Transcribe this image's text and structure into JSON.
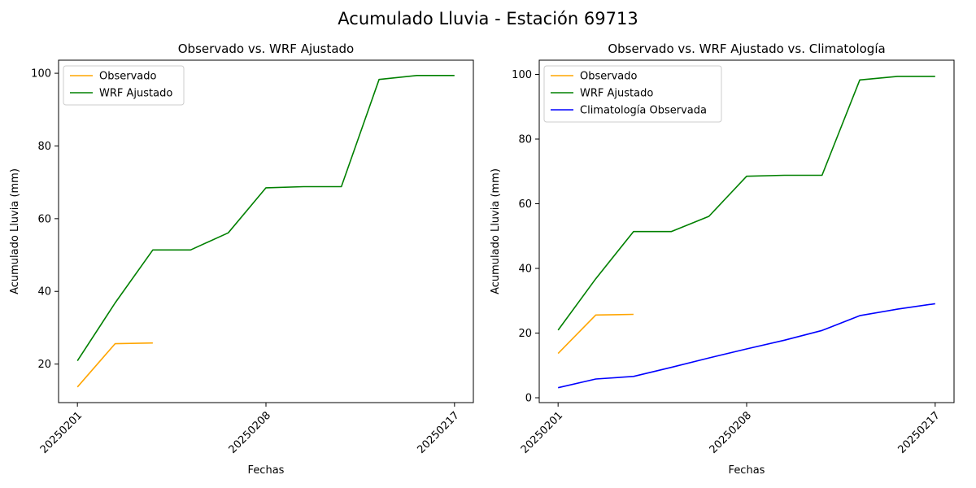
{
  "figure": {
    "suptitle": "Acumulado Lluvia - Estación 69713"
  },
  "chart_data": [
    {
      "type": "line",
      "title": "Observado vs. WRF Ajustado",
      "xlabel": "Fechas",
      "ylabel": "Acumulado Lluvia (mm)",
      "x_ticks": [
        "20250201",
        "20250208",
        "20250217"
      ],
      "x_tick_positions": [
        0,
        5,
        10
      ],
      "xlim": [
        -0.5,
        10.5
      ],
      "ylim": [
        9.4,
        103.6
      ],
      "y_ticks": [
        20,
        40,
        60,
        80,
        100
      ],
      "legend": "top-left",
      "grid": false,
      "series": [
        {
          "name": "Observado",
          "color": "#ffa500",
          "x": [
            0,
            1,
            2
          ],
          "y": [
            13.7,
            25.6,
            25.8
          ]
        },
        {
          "name": "WRF Ajustado",
          "color": "#008000",
          "x": [
            0,
            1,
            2,
            3,
            4,
            5,
            6,
            7,
            8,
            9,
            10
          ],
          "y": [
            20.9,
            36.8,
            51.4,
            51.4,
            56.1,
            68.5,
            68.8,
            68.8,
            98.3,
            99.4,
            99.4
          ]
        }
      ]
    },
    {
      "type": "line",
      "title": "Observado vs. WRF Ajustado vs. Climatología",
      "xlabel": "Fechas",
      "ylabel": "Acumulado Lluvia (mm)",
      "x_ticks": [
        "20250201",
        "20250208",
        "20250217"
      ],
      "x_tick_positions": [
        0,
        5,
        10
      ],
      "xlim": [
        -0.5,
        10.5
      ],
      "ylim": [
        -1.5,
        104.4
      ],
      "y_ticks": [
        0,
        20,
        40,
        60,
        80,
        100
      ],
      "legend": "top-left",
      "grid": false,
      "series": [
        {
          "name": "Observado",
          "color": "#ffa500",
          "x": [
            0,
            1,
            2
          ],
          "y": [
            13.7,
            25.6,
            25.8
          ]
        },
        {
          "name": "WRF Ajustado",
          "color": "#008000",
          "x": [
            0,
            1,
            2,
            3,
            4,
            5,
            6,
            7,
            8,
            9,
            10
          ],
          "y": [
            20.9,
            36.8,
            51.4,
            51.4,
            56.1,
            68.5,
            68.8,
            68.8,
            98.3,
            99.4,
            99.4
          ]
        },
        {
          "name": "Climatología Observada",
          "color": "#0000ff",
          "x": [
            0,
            1,
            2,
            3,
            4,
            5,
            6,
            7,
            8,
            9,
            10
          ],
          "y": [
            3.1,
            5.8,
            6.6,
            9.4,
            12.3,
            15.1,
            17.8,
            20.8,
            25.4,
            27.4,
            29.1
          ]
        }
      ]
    }
  ]
}
